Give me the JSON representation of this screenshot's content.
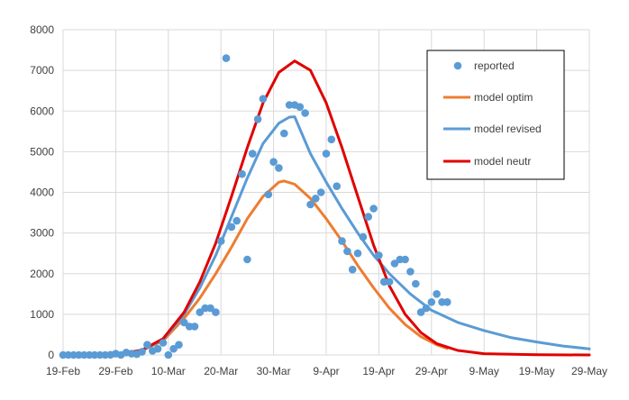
{
  "chart_data": {
    "type": "line",
    "title": "",
    "xlabel": "",
    "ylabel": "",
    "grid": true,
    "legend_position": "top-right",
    "ylim": [
      0,
      8000
    ],
    "y_ticks": [
      0,
      1000,
      2000,
      3000,
      4000,
      5000,
      6000,
      7000,
      8000
    ],
    "y_tick_labels": [
      "0",
      "1000",
      "2000",
      "3000",
      "4000",
      "5000",
      "6000",
      "7000",
      "8000"
    ],
    "x_range": [
      "2020-02-19",
      "2020-05-29"
    ],
    "x_ticks": [
      "2020-02-19",
      "2020-02-29",
      "2020-03-10",
      "2020-03-20",
      "2020-03-30",
      "2020-04-09",
      "2020-04-19",
      "2020-04-29",
      "2020-05-09",
      "2020-05-19",
      "2020-05-29"
    ],
    "x_tick_labels": [
      "19-Feb",
      "29-Feb",
      "10-Mar",
      "20-Mar",
      "30-Mar",
      "9-Apr",
      "19-Apr",
      "29-Apr",
      "9-May",
      "19-May",
      "29-May"
    ],
    "series": [
      {
        "name": "reported",
        "kind": "scatter",
        "color": "#5b9bd5",
        "points": [
          [
            "2020-02-19",
            0
          ],
          [
            "2020-02-20",
            0
          ],
          [
            "2020-02-21",
            0
          ],
          [
            "2020-02-22",
            0
          ],
          [
            "2020-02-23",
            0
          ],
          [
            "2020-02-24",
            0
          ],
          [
            "2020-02-25",
            0
          ],
          [
            "2020-02-26",
            0
          ],
          [
            "2020-02-27",
            0
          ],
          [
            "2020-02-28",
            5
          ],
          [
            "2020-02-29",
            30
          ],
          [
            "2020-03-01",
            0
          ],
          [
            "2020-03-02",
            60
          ],
          [
            "2020-03-03",
            30
          ],
          [
            "2020-03-04",
            20
          ],
          [
            "2020-03-05",
            80
          ],
          [
            "2020-03-06",
            250
          ],
          [
            "2020-03-07",
            100
          ],
          [
            "2020-03-08",
            150
          ],
          [
            "2020-03-09",
            300
          ],
          [
            "2020-03-10",
            0
          ],
          [
            "2020-03-11",
            150
          ],
          [
            "2020-03-12",
            250
          ],
          [
            "2020-03-13",
            800
          ],
          [
            "2020-03-14",
            700
          ],
          [
            "2020-03-15",
            700
          ],
          [
            "2020-03-16",
            1050
          ],
          [
            "2020-03-17",
            1150
          ],
          [
            "2020-03-18",
            1150
          ],
          [
            "2020-03-19",
            1050
          ],
          [
            "2020-03-20",
            2800
          ],
          [
            "2020-03-21",
            7300
          ],
          [
            "2020-03-22",
            3150
          ],
          [
            "2020-03-23",
            3300
          ],
          [
            "2020-03-24",
            4450
          ],
          [
            "2020-03-25",
            2350
          ],
          [
            "2020-03-26",
            4950
          ],
          [
            "2020-03-27",
            5800
          ],
          [
            "2020-03-28",
            6300
          ],
          [
            "2020-03-29",
            3950
          ],
          [
            "2020-03-30",
            4750
          ],
          [
            "2020-03-31",
            4600
          ],
          [
            "2020-04-01",
            5450
          ],
          [
            "2020-04-02",
            6150
          ],
          [
            "2020-04-03",
            6150
          ],
          [
            "2020-04-04",
            6100
          ],
          [
            "2020-04-05",
            5950
          ],
          [
            "2020-04-06",
            3700
          ],
          [
            "2020-04-07",
            3850
          ],
          [
            "2020-04-08",
            4000
          ],
          [
            "2020-04-09",
            4950
          ],
          [
            "2020-04-10",
            5300
          ],
          [
            "2020-04-11",
            4150
          ],
          [
            "2020-04-12",
            2800
          ],
          [
            "2020-04-13",
            2550
          ],
          [
            "2020-04-14",
            2100
          ],
          [
            "2020-04-15",
            2500
          ],
          [
            "2020-04-16",
            2900
          ],
          [
            "2020-04-17",
            3400
          ],
          [
            "2020-04-18",
            3600
          ],
          [
            "2020-04-19",
            2450
          ],
          [
            "2020-04-20",
            1800
          ],
          [
            "2020-04-21",
            1800
          ],
          [
            "2020-04-22",
            2250
          ],
          [
            "2020-04-23",
            2350
          ],
          [
            "2020-04-24",
            2350
          ],
          [
            "2020-04-25",
            2050
          ],
          [
            "2020-04-26",
            1750
          ],
          [
            "2020-04-27",
            1050
          ],
          [
            "2020-04-28",
            1150
          ],
          [
            "2020-04-29",
            1300
          ],
          [
            "2020-04-30",
            1500
          ],
          [
            "2020-05-01",
            1300
          ],
          [
            "2020-05-02",
            1300
          ]
        ]
      },
      {
        "name": "model optim",
        "kind": "line",
        "color": "#ed7d31",
        "points": [
          [
            "2020-02-19",
            0
          ],
          [
            "2020-03-01",
            30
          ],
          [
            "2020-03-05",
            110
          ],
          [
            "2020-03-09",
            350
          ],
          [
            "2020-03-13",
            900
          ],
          [
            "2020-03-16",
            1400
          ],
          [
            "2020-03-19",
            2000
          ],
          [
            "2020-03-22",
            2650
          ],
          [
            "2020-03-25",
            3350
          ],
          [
            "2020-03-28",
            3900
          ],
          [
            "2020-03-31",
            4250
          ],
          [
            "2020-04-01",
            4280
          ],
          [
            "2020-04-03",
            4200
          ],
          [
            "2020-04-06",
            3850
          ],
          [
            "2020-04-09",
            3350
          ],
          [
            "2020-04-12",
            2800
          ],
          [
            "2020-04-15",
            2200
          ],
          [
            "2020-04-18",
            1650
          ],
          [
            "2020-04-21",
            1150
          ],
          [
            "2020-04-24",
            750
          ],
          [
            "2020-04-27",
            450
          ],
          [
            "2020-04-30",
            250
          ],
          [
            "2020-05-02",
            160
          ]
        ]
      },
      {
        "name": "model revised",
        "kind": "line",
        "color": "#5b9bd5",
        "points": [
          [
            "2020-02-19",
            0
          ],
          [
            "2020-03-01",
            30
          ],
          [
            "2020-03-05",
            110
          ],
          [
            "2020-03-09",
            380
          ],
          [
            "2020-03-13",
            1000
          ],
          [
            "2020-03-16",
            1650
          ],
          [
            "2020-03-19",
            2450
          ],
          [
            "2020-03-22",
            3400
          ],
          [
            "2020-03-25",
            4350
          ],
          [
            "2020-03-28",
            5200
          ],
          [
            "2020-03-31",
            5700
          ],
          [
            "2020-04-02",
            5850
          ],
          [
            "2020-04-03",
            5860
          ],
          [
            "2020-04-06",
            4950
          ],
          [
            "2020-04-09",
            4250
          ],
          [
            "2020-04-12",
            3600
          ],
          [
            "2020-04-15",
            3000
          ],
          [
            "2020-04-18",
            2450
          ],
          [
            "2020-04-21",
            2000
          ],
          [
            "2020-04-25",
            1500
          ],
          [
            "2020-04-29",
            1100
          ],
          [
            "2020-05-04",
            800
          ],
          [
            "2020-05-09",
            600
          ],
          [
            "2020-05-14",
            430
          ],
          [
            "2020-05-19",
            320
          ],
          [
            "2020-05-24",
            220
          ],
          [
            "2020-05-29",
            150
          ]
        ]
      },
      {
        "name": "model neutr",
        "kind": "line",
        "color": "#e00000",
        "points": [
          [
            "2020-02-19",
            0
          ],
          [
            "2020-03-01",
            30
          ],
          [
            "2020-03-05",
            120
          ],
          [
            "2020-03-09",
            400
          ],
          [
            "2020-03-13",
            1050
          ],
          [
            "2020-03-16",
            1800
          ],
          [
            "2020-03-19",
            2750
          ],
          [
            "2020-03-22",
            3900
          ],
          [
            "2020-03-25",
            5100
          ],
          [
            "2020-03-28",
            6200
          ],
          [
            "2020-03-31",
            6950
          ],
          [
            "2020-04-03",
            7230
          ],
          [
            "2020-04-06",
            7000
          ],
          [
            "2020-04-09",
            6200
          ],
          [
            "2020-04-12",
            5100
          ],
          [
            "2020-04-15",
            3900
          ],
          [
            "2020-04-18",
            2700
          ],
          [
            "2020-04-21",
            1700
          ],
          [
            "2020-04-24",
            1000
          ],
          [
            "2020-04-27",
            550
          ],
          [
            "2020-04-30",
            280
          ],
          [
            "2020-05-04",
            110
          ],
          [
            "2020-05-09",
            30
          ],
          [
            "2020-05-19",
            5
          ],
          [
            "2020-05-29",
            0
          ]
        ]
      }
    ]
  }
}
